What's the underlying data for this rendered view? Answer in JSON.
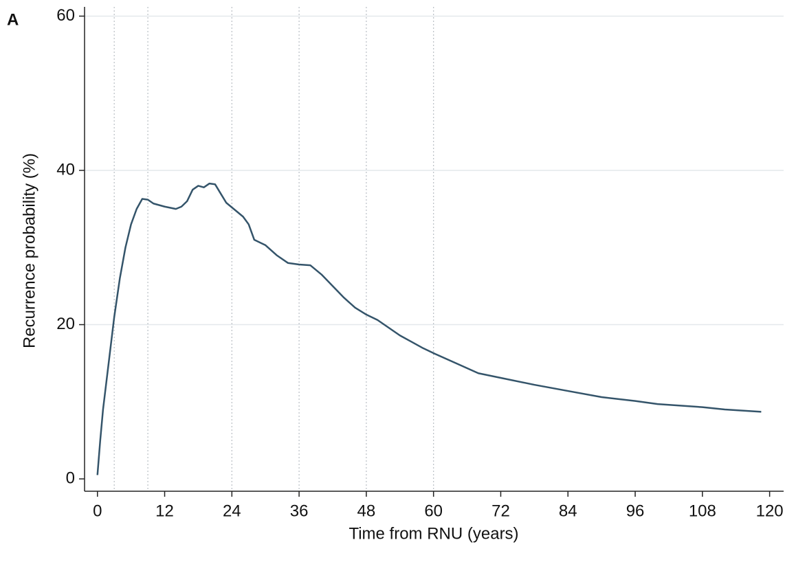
{
  "chart_data": {
    "type": "line",
    "panel_label": "A",
    "x_label": "Time from RNU (years)",
    "y_label": "Recurrence probability (%)",
    "x": [
      0,
      0.5,
      1,
      2,
      3,
      4,
      5,
      6,
      7,
      8,
      9,
      10,
      12,
      14,
      15,
      16,
      17,
      18,
      19,
      20,
      21,
      22,
      23,
      24,
      26,
      27,
      28,
      30,
      32,
      34,
      36,
      38,
      40,
      42,
      44,
      46,
      48,
      50,
      52,
      54,
      56,
      58,
      60,
      64,
      68,
      72,
      78,
      84,
      90,
      96,
      100,
      108,
      112,
      118.5
    ],
    "series": [
      {
        "color": "#34546a",
        "values": [
          0.5,
          5,
          9,
          15,
          21,
          26,
          30,
          33,
          35,
          36.3,
          36.2,
          35.7,
          35.3,
          35,
          35.3,
          36,
          37.5,
          38,
          37.8,
          38.3,
          38.2,
          37,
          35.8,
          35.2,
          34,
          33,
          31,
          30.3,
          29,
          28,
          27.8,
          27.7,
          26.5,
          25,
          23.5,
          22.2,
          21.3,
          20.6,
          19.6,
          18.6,
          17.8,
          17,
          16.3,
          15,
          13.7,
          13.1,
          12.2,
          11.4,
          10.6,
          10.1,
          9.7,
          9.3,
          9.0,
          8.7
        ]
      }
    ],
    "xlim": [
      -2.3,
      122.5
    ],
    "ylim": [
      -1.6,
      61.2
    ],
    "xticks": [
      0,
      12,
      24,
      36,
      48,
      60,
      72,
      84,
      96,
      108,
      120
    ],
    "yticks": [
      0,
      20,
      40,
      60
    ],
    "grid": true,
    "vlines": [
      3,
      9,
      24,
      36,
      48,
      60
    ]
  }
}
